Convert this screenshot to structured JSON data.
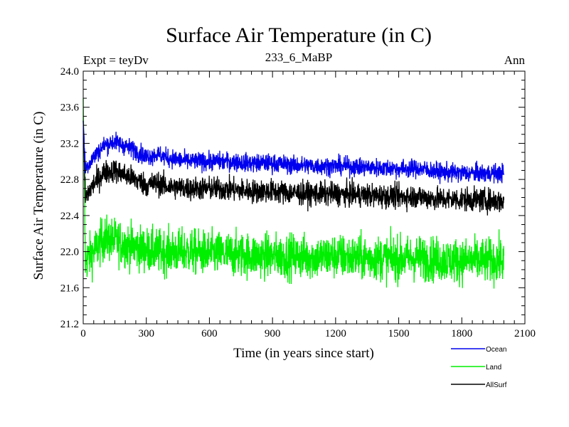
{
  "chart_data": {
    "type": "line",
    "title": "Surface Air Temperature (in C)",
    "subtitle_left": "Expt = teyDv",
    "subtitle_center": "233_6_MaBP",
    "subtitle_right": "Ann",
    "xlabel": "Time (in years since start)",
    "ylabel": "Surface Air Temperature (in C)",
    "xlim": [
      0,
      2100
    ],
    "ylim": [
      21.2,
      24.0
    ],
    "xticks": [
      0,
      300,
      600,
      900,
      1200,
      1500,
      1800,
      2100
    ],
    "yticks": [
      21.2,
      21.6,
      22.0,
      22.4,
      22.8,
      23.2,
      23.6,
      24.0
    ],
    "x_range": [
      0,
      2000
    ],
    "series": [
      {
        "name": "Ocean",
        "color": "#0000ee",
        "amplitude": 0.07,
        "x": [
          0,
          10,
          50,
          100,
          150,
          200,
          250,
          300,
          350,
          400,
          500,
          600,
          700,
          800,
          900,
          1000,
          1100,
          1200,
          1300,
          1400,
          1500,
          1600,
          1700,
          1800,
          1900,
          2000
        ],
        "values": [
          23.45,
          22.92,
          23.05,
          23.18,
          23.22,
          23.17,
          23.12,
          23.05,
          23.08,
          23.04,
          23.0,
          23.0,
          23.0,
          22.98,
          22.98,
          22.96,
          22.95,
          22.95,
          22.94,
          22.93,
          22.92,
          22.92,
          22.88,
          22.87,
          22.87,
          22.87
        ]
      },
      {
        "name": "Land",
        "color": "#00ee00",
        "amplitude": 0.17,
        "x": [
          0,
          10,
          50,
          100,
          150,
          200,
          250,
          300,
          350,
          400,
          500,
          600,
          700,
          800,
          900,
          1000,
          1100,
          1200,
          1300,
          1400,
          1500,
          1600,
          1700,
          1800,
          1900,
          2000
        ],
        "values": [
          23.7,
          21.9,
          22.0,
          22.15,
          22.12,
          22.08,
          22.05,
          22.02,
          22.0,
          22.0,
          22.0,
          21.98,
          21.97,
          21.96,
          21.95,
          21.95,
          21.94,
          21.95,
          21.93,
          21.93,
          21.92,
          21.93,
          21.91,
          21.9,
          21.9,
          21.9
        ]
      },
      {
        "name": "AllSurf",
        "color": "#000000",
        "amplitude": 0.09,
        "x": [
          0,
          10,
          50,
          100,
          150,
          200,
          250,
          300,
          350,
          400,
          500,
          600,
          700,
          800,
          900,
          1000,
          1100,
          1200,
          1300,
          1400,
          1500,
          1600,
          1700,
          1800,
          1900,
          2000
        ],
        "values": [
          23.45,
          22.6,
          22.75,
          22.88,
          22.9,
          22.85,
          22.8,
          22.74,
          22.76,
          22.72,
          22.7,
          22.7,
          22.69,
          22.67,
          22.67,
          22.65,
          22.64,
          22.64,
          22.63,
          22.62,
          22.61,
          22.61,
          22.58,
          22.58,
          22.57,
          22.56
        ]
      }
    ],
    "legend_position": "bottom-right"
  }
}
